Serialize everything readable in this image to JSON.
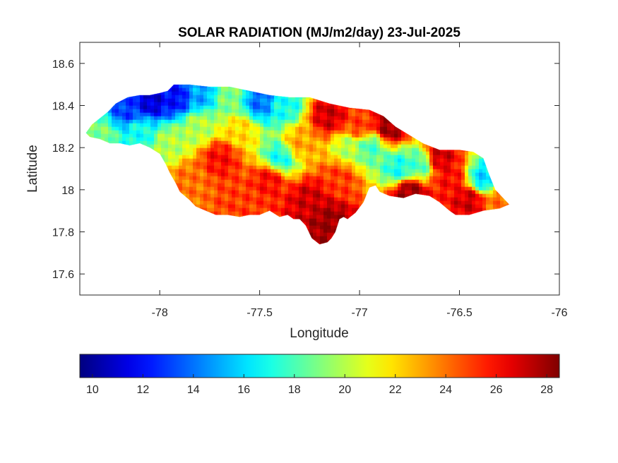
{
  "figure": {
    "title": "SOLAR RADIATION (MJ/m2/day) 23-Jul-2025",
    "xlabel": "Longitude",
    "ylabel": "Latitude"
  },
  "chart_data": {
    "type": "heatmap",
    "title": "SOLAR RADIATION (MJ/m2/day) 23-Jul-2025",
    "xlabel": "Longitude",
    "ylabel": "Latitude",
    "xlim": [
      -78.4,
      -76.0
    ],
    "ylim": [
      17.5,
      18.7
    ],
    "x_ticks": [
      {
        "value": -78,
        "label": "-78"
      },
      {
        "value": -77.5,
        "label": "-77.5"
      },
      {
        "value": -77,
        "label": "-77"
      },
      {
        "value": -76.5,
        "label": "-76.5"
      },
      {
        "value": -76,
        "label": "-76"
      }
    ],
    "y_ticks": [
      {
        "value": 18.6,
        "label": "18.6"
      },
      {
        "value": 18.4,
        "label": "18.4"
      },
      {
        "value": 18.2,
        "label": "18.2"
      },
      {
        "value": 18,
        "label": "18"
      },
      {
        "value": 17.8,
        "label": "17.8"
      },
      {
        "value": 17.6,
        "label": "17.6"
      }
    ],
    "grid": false,
    "colormap": "jet",
    "colorbar": {
      "placement": "below",
      "range": [
        9.5,
        28.5
      ],
      "ticks": [
        {
          "value": 10,
          "label": "10"
        },
        {
          "value": 12,
          "label": "12"
        },
        {
          "value": 14,
          "label": "14"
        },
        {
          "value": 16,
          "label": "16"
        },
        {
          "value": 18,
          "label": "18"
        },
        {
          "value": 20,
          "label": "20"
        },
        {
          "value": 22,
          "label": "22"
        },
        {
          "value": 24,
          "label": "24"
        },
        {
          "value": 26,
          "label": "26"
        },
        {
          "value": 28,
          "label": "28"
        }
      ]
    },
    "outline": [
      [
        -78.37,
        18.27
      ],
      [
        -78.34,
        18.31
      ],
      [
        -78.3,
        18.34
      ],
      [
        -78.26,
        18.37
      ],
      [
        -78.22,
        18.41
      ],
      [
        -78.16,
        18.44
      ],
      [
        -78.1,
        18.45
      ],
      [
        -78.05,
        18.45
      ],
      [
        -78.0,
        18.46
      ],
      [
        -77.96,
        18.47
      ],
      [
        -77.93,
        18.5
      ],
      [
        -77.85,
        18.5
      ],
      [
        -77.75,
        18.49
      ],
      [
        -77.65,
        18.49
      ],
      [
        -77.55,
        18.47
      ],
      [
        -77.45,
        18.45
      ],
      [
        -77.35,
        18.44
      ],
      [
        -77.25,
        18.44
      ],
      [
        -77.15,
        18.41
      ],
      [
        -77.05,
        18.39
      ],
      [
        -76.95,
        18.38
      ],
      [
        -76.88,
        18.35
      ],
      [
        -76.82,
        18.3
      ],
      [
        -76.75,
        18.26
      ],
      [
        -76.68,
        18.22
      ],
      [
        -76.6,
        18.19
      ],
      [
        -76.5,
        18.19
      ],
      [
        -76.43,
        18.18
      ],
      [
        -76.38,
        18.15
      ],
      [
        -76.35,
        18.07
      ],
      [
        -76.32,
        18.0
      ],
      [
        -76.28,
        17.96
      ],
      [
        -76.25,
        17.93
      ],
      [
        -76.3,
        17.91
      ],
      [
        -76.38,
        17.9
      ],
      [
        -76.45,
        17.88
      ],
      [
        -76.52,
        17.88
      ],
      [
        -76.55,
        17.9
      ],
      [
        -76.6,
        17.94
      ],
      [
        -76.65,
        17.97
      ],
      [
        -76.72,
        17.98
      ],
      [
        -76.78,
        17.96
      ],
      [
        -76.85,
        17.97
      ],
      [
        -76.9,
        17.99
      ],
      [
        -76.92,
        18.02
      ],
      [
        -76.95,
        18.01
      ],
      [
        -76.98,
        17.94
      ],
      [
        -77.02,
        17.89
      ],
      [
        -77.06,
        17.86
      ],
      [
        -77.08,
        17.87
      ],
      [
        -77.1,
        17.86
      ],
      [
        -77.12,
        17.8
      ],
      [
        -77.14,
        17.77
      ],
      [
        -77.16,
        17.75
      ],
      [
        -77.2,
        17.74
      ],
      [
        -77.24,
        17.77
      ],
      [
        -77.27,
        17.83
      ],
      [
        -77.3,
        17.86
      ],
      [
        -77.33,
        17.86
      ],
      [
        -77.36,
        17.88
      ],
      [
        -77.4,
        17.87
      ],
      [
        -77.45,
        17.9
      ],
      [
        -77.5,
        17.88
      ],
      [
        -77.55,
        17.88
      ],
      [
        -77.6,
        17.87
      ],
      [
        -77.66,
        17.88
      ],
      [
        -77.72,
        17.88
      ],
      [
        -77.77,
        17.9
      ],
      [
        -77.82,
        17.92
      ],
      [
        -77.85,
        17.95
      ],
      [
        -77.9,
        17.99
      ],
      [
        -77.92,
        18.03
      ],
      [
        -77.95,
        18.08
      ],
      [
        -77.97,
        18.12
      ],
      [
        -78.0,
        18.17
      ],
      [
        -78.05,
        18.2
      ],
      [
        -78.1,
        18.22
      ],
      [
        -78.15,
        18.21
      ],
      [
        -78.2,
        18.22
      ],
      [
        -78.25,
        18.22
      ],
      [
        -78.3,
        18.24
      ],
      [
        -78.35,
        18.25
      ]
    ],
    "field_centers": [
      {
        "lon": -78.3,
        "lat": 18.25,
        "value": 19
      },
      {
        "lon": -78.15,
        "lat": 18.38,
        "value": 13
      },
      {
        "lon": -78.05,
        "lat": 18.42,
        "value": 11
      },
      {
        "lon": -77.92,
        "lat": 18.44,
        "value": 12
      },
      {
        "lon": -77.8,
        "lat": 18.45,
        "value": 15
      },
      {
        "lon": -77.65,
        "lat": 18.44,
        "value": 19
      },
      {
        "lon": -77.5,
        "lat": 18.42,
        "value": 14
      },
      {
        "lon": -77.38,
        "lat": 18.4,
        "value": 17
      },
      {
        "lon": -78.1,
        "lat": 18.28,
        "value": 17
      },
      {
        "lon": -77.95,
        "lat": 18.22,
        "value": 20
      },
      {
        "lon": -77.8,
        "lat": 18.3,
        "value": 20
      },
      {
        "lon": -77.6,
        "lat": 18.28,
        "value": 22
      },
      {
        "lon": -77.85,
        "lat": 18.05,
        "value": 24
      },
      {
        "lon": -77.7,
        "lat": 18.15,
        "value": 26
      },
      {
        "lon": -77.6,
        "lat": 17.95,
        "value": 25
      },
      {
        "lon": -77.45,
        "lat": 18.05,
        "value": 26
      },
      {
        "lon": -77.4,
        "lat": 18.15,
        "value": 17
      },
      {
        "lon": -77.3,
        "lat": 18.22,
        "value": 23
      },
      {
        "lon": -77.25,
        "lat": 17.95,
        "value": 27
      },
      {
        "lon": -77.15,
        "lat": 17.85,
        "value": 28
      },
      {
        "lon": -77.1,
        "lat": 18.05,
        "value": 25
      },
      {
        "lon": -77.05,
        "lat": 18.2,
        "value": 20
      },
      {
        "lon": -77.15,
        "lat": 18.35,
        "value": 27
      },
      {
        "lon": -77.0,
        "lat": 18.3,
        "value": 25
      },
      {
        "lon": -76.95,
        "lat": 18.2,
        "value": 18
      },
      {
        "lon": -76.85,
        "lat": 18.3,
        "value": 28
      },
      {
        "lon": -76.8,
        "lat": 18.1,
        "value": 17
      },
      {
        "lon": -76.7,
        "lat": 18.12,
        "value": 18
      },
      {
        "lon": -76.6,
        "lat": 18.15,
        "value": 27
      },
      {
        "lon": -76.55,
        "lat": 18.05,
        "value": 26
      },
      {
        "lon": -76.45,
        "lat": 17.95,
        "value": 27
      },
      {
        "lon": -76.38,
        "lat": 18.05,
        "value": 16
      },
      {
        "lon": -76.3,
        "lat": 17.95,
        "value": 24
      },
      {
        "lon": -76.75,
        "lat": 17.99,
        "value": 28
      }
    ]
  }
}
